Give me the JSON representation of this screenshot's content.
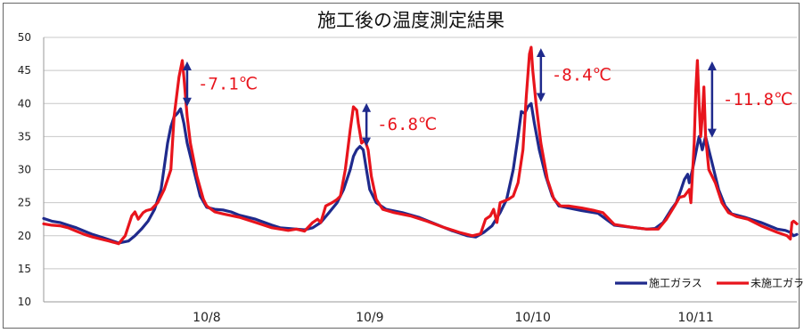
{
  "chart_data": {
    "type": "line",
    "title": "施工後の温度測定結果",
    "xlabel": "",
    "ylabel": "",
    "ylim": [
      10,
      50
    ],
    "yticks": [
      10,
      15,
      20,
      25,
      30,
      35,
      40,
      45,
      50
    ],
    "x_range": [
      0,
      4.62
    ],
    "x_ticks": [
      {
        "label": "10/8",
        "x": 1.0
      },
      {
        "label": "10/9",
        "x": 2.0
      },
      {
        "label": "10/10",
        "x": 3.0
      },
      {
        "label": "10/11",
        "x": 4.0
      }
    ],
    "grid": true,
    "legend_position": "bottom-right",
    "series": [
      {
        "name": "施工ガラス",
        "color": "#1f2a8c",
        "points": [
          [
            0.0,
            22.6
          ],
          [
            0.05,
            22.2
          ],
          [
            0.1,
            22.0
          ],
          [
            0.15,
            21.6
          ],
          [
            0.2,
            21.2
          ],
          [
            0.25,
            20.7
          ],
          [
            0.3,
            20.2
          ],
          [
            0.35,
            19.8
          ],
          [
            0.4,
            19.4
          ],
          [
            0.46,
            18.9
          ],
          [
            0.52,
            19.2
          ],
          [
            0.56,
            20.0
          ],
          [
            0.6,
            21.0
          ],
          [
            0.64,
            22.2
          ],
          [
            0.68,
            24.0
          ],
          [
            0.72,
            27.0
          ],
          [
            0.76,
            34.0
          ],
          [
            0.78,
            36.5
          ],
          [
            0.8,
            38.0
          ],
          [
            0.82,
            38.5
          ],
          [
            0.84,
            39.2
          ],
          [
            0.86,
            37.0
          ],
          [
            0.88,
            34.0
          ],
          [
            0.92,
            30.0
          ],
          [
            0.96,
            26.0
          ],
          [
            1.0,
            24.3
          ],
          [
            1.05,
            24.0
          ],
          [
            1.1,
            23.9
          ],
          [
            1.15,
            23.6
          ],
          [
            1.2,
            23.1
          ],
          [
            1.3,
            22.5
          ],
          [
            1.4,
            21.6
          ],
          [
            1.45,
            21.2
          ],
          [
            1.5,
            21.1
          ],
          [
            1.6,
            20.9
          ],
          [
            1.65,
            21.2
          ],
          [
            1.7,
            22.0
          ],
          [
            1.75,
            23.5
          ],
          [
            1.8,
            25.0
          ],
          [
            1.84,
            27.0
          ],
          [
            1.88,
            30.0
          ],
          [
            1.9,
            32.0
          ],
          [
            1.92,
            33.0
          ],
          [
            1.94,
            33.5
          ],
          [
            1.96,
            33.0
          ],
          [
            1.98,
            30.0
          ],
          [
            2.0,
            27.0
          ],
          [
            2.04,
            25.0
          ],
          [
            2.1,
            24.0
          ],
          [
            2.2,
            23.5
          ],
          [
            2.3,
            22.8
          ],
          [
            2.4,
            21.8
          ],
          [
            2.5,
            20.8
          ],
          [
            2.6,
            20.0
          ],
          [
            2.65,
            19.8
          ],
          [
            2.7,
            20.5
          ],
          [
            2.75,
            21.5
          ],
          [
            2.8,
            23.5
          ],
          [
            2.84,
            25.5
          ],
          [
            2.88,
            30.0
          ],
          [
            2.91,
            35.0
          ],
          [
            2.93,
            38.8
          ],
          [
            2.95,
            38.5
          ],
          [
            2.97,
            39.5
          ],
          [
            2.99,
            40.0
          ],
          [
            3.01,
            37.0
          ],
          [
            3.04,
            33.0
          ],
          [
            3.08,
            29.0
          ],
          [
            3.12,
            26.0
          ],
          [
            3.16,
            24.5
          ],
          [
            3.2,
            24.3
          ],
          [
            3.3,
            23.8
          ],
          [
            3.4,
            23.4
          ],
          [
            3.45,
            22.5
          ],
          [
            3.5,
            21.6
          ],
          [
            3.6,
            21.3
          ],
          [
            3.7,
            21.0
          ],
          [
            3.75,
            21.1
          ],
          [
            3.8,
            22.0
          ],
          [
            3.85,
            24.0
          ],
          [
            3.88,
            25.0
          ],
          [
            3.91,
            27.0
          ],
          [
            3.93,
            28.5
          ],
          [
            3.95,
            29.3
          ],
          [
            3.96,
            28.0
          ],
          [
            3.98,
            30.0
          ],
          [
            4.0,
            32.5
          ],
          [
            4.02,
            35.0
          ],
          [
            4.04,
            33.0
          ],
          [
            4.06,
            35.0
          ],
          [
            4.08,
            33.0
          ],
          [
            4.1,
            31.0
          ],
          [
            4.14,
            27.0
          ],
          [
            4.18,
            24.5
          ],
          [
            4.22,
            23.3
          ],
          [
            4.3,
            22.8
          ],
          [
            4.4,
            22.0
          ],
          [
            4.5,
            21.0
          ],
          [
            4.55,
            20.8
          ],
          [
            4.58,
            20.5
          ],
          [
            4.6,
            20.0
          ],
          [
            4.62,
            20.2
          ]
        ]
      },
      {
        "name": "未施工ガラス",
        "color": "#e8141c",
        "points": [
          [
            0.0,
            21.8
          ],
          [
            0.05,
            21.6
          ],
          [
            0.1,
            21.5
          ],
          [
            0.15,
            21.2
          ],
          [
            0.2,
            20.7
          ],
          [
            0.25,
            20.2
          ],
          [
            0.3,
            19.8
          ],
          [
            0.35,
            19.5
          ],
          [
            0.4,
            19.2
          ],
          [
            0.46,
            18.8
          ],
          [
            0.5,
            20.0
          ],
          [
            0.54,
            23.0
          ],
          [
            0.56,
            23.6
          ],
          [
            0.58,
            22.5
          ],
          [
            0.61,
            23.5
          ],
          [
            0.63,
            23.8
          ],
          [
            0.66,
            24.0
          ],
          [
            0.7,
            25.0
          ],
          [
            0.74,
            27.0
          ],
          [
            0.78,
            30.0
          ],
          [
            0.8,
            38.0
          ],
          [
            0.83,
            44.0
          ],
          [
            0.85,
            46.5
          ],
          [
            0.86,
            44.0
          ],
          [
            0.88,
            38.0
          ],
          [
            0.9,
            34.0
          ],
          [
            0.94,
            29.0
          ],
          [
            0.98,
            25.5
          ],
          [
            1.0,
            24.5
          ],
          [
            1.05,
            23.6
          ],
          [
            1.1,
            23.3
          ],
          [
            1.2,
            22.8
          ],
          [
            1.3,
            22.0
          ],
          [
            1.4,
            21.2
          ],
          [
            1.5,
            20.8
          ],
          [
            1.55,
            21.0
          ],
          [
            1.6,
            20.7
          ],
          [
            1.65,
            22.0
          ],
          [
            1.68,
            22.5
          ],
          [
            1.7,
            22.0
          ],
          [
            1.73,
            24.5
          ],
          [
            1.77,
            25.0
          ],
          [
            1.8,
            25.5
          ],
          [
            1.82,
            26.0
          ],
          [
            1.85,
            30.0
          ],
          [
            1.88,
            36.0
          ],
          [
            1.9,
            39.5
          ],
          [
            1.92,
            39.0
          ],
          [
            1.93,
            37.0
          ],
          [
            1.95,
            34.0
          ],
          [
            1.97,
            34.5
          ],
          [
            1.99,
            33.0
          ],
          [
            2.01,
            29.0
          ],
          [
            2.04,
            25.5
          ],
          [
            2.08,
            24.0
          ],
          [
            2.15,
            23.5
          ],
          [
            2.25,
            23.0
          ],
          [
            2.35,
            22.2
          ],
          [
            2.45,
            21.3
          ],
          [
            2.55,
            20.5
          ],
          [
            2.63,
            20.0
          ],
          [
            2.68,
            20.3
          ],
          [
            2.71,
            22.5
          ],
          [
            2.74,
            23.0
          ],
          [
            2.76,
            24.0
          ],
          [
            2.78,
            22.0
          ],
          [
            2.8,
            25.0
          ],
          [
            2.85,
            25.5
          ],
          [
            2.88,
            26.0
          ],
          [
            2.91,
            28.0
          ],
          [
            2.94,
            33.0
          ],
          [
            2.96,
            41.0
          ],
          [
            2.98,
            47.5
          ],
          [
            2.99,
            48.5
          ],
          [
            3.0,
            45.0
          ],
          [
            3.02,
            40.0
          ],
          [
            3.05,
            34.0
          ],
          [
            3.09,
            28.5
          ],
          [
            3.13,
            25.5
          ],
          [
            3.17,
            24.5
          ],
          [
            3.22,
            24.5
          ],
          [
            3.3,
            24.2
          ],
          [
            3.38,
            23.8
          ],
          [
            3.43,
            23.5
          ],
          [
            3.5,
            21.7
          ],
          [
            3.6,
            21.3
          ],
          [
            3.7,
            21.0
          ],
          [
            3.77,
            21.0
          ],
          [
            3.82,
            22.5
          ],
          [
            3.87,
            24.5
          ],
          [
            3.9,
            25.8
          ],
          [
            3.93,
            26.0
          ],
          [
            3.96,
            27.0
          ],
          [
            3.97,
            25.0
          ],
          [
            3.99,
            34.0
          ],
          [
            4.0,
            42.0
          ],
          [
            4.01,
            46.5
          ],
          [
            4.02,
            40.0
          ],
          [
            4.03,
            35.0
          ],
          [
            4.04,
            38.0
          ],
          [
            4.05,
            42.5
          ],
          [
            4.06,
            35.0
          ],
          [
            4.08,
            30.0
          ],
          [
            4.12,
            28.0
          ],
          [
            4.16,
            25.0
          ],
          [
            4.2,
            23.5
          ],
          [
            4.25,
            22.9
          ],
          [
            4.32,
            22.5
          ],
          [
            4.4,
            21.5
          ],
          [
            4.5,
            20.5
          ],
          [
            4.56,
            20.0
          ],
          [
            4.58,
            19.5
          ],
          [
            4.59,
            22.0
          ],
          [
            4.6,
            22.2
          ],
          [
            4.62,
            21.8
          ]
        ]
      }
    ],
    "annotations": [
      {
        "text": "-7.1℃",
        "x": 0.88,
        "y_top": 46.5,
        "y_bottom": 39.4
      },
      {
        "text": "-6.8℃",
        "x": 1.98,
        "y_top": 40.2,
        "y_bottom": 33.4
      },
      {
        "text": "-8.4℃",
        "x": 3.05,
        "y_top": 48.5,
        "y_bottom": 40.1
      },
      {
        "text": "-11.8℃",
        "x": 4.1,
        "y_top": 46.5,
        "y_bottom": 34.7
      }
    ]
  },
  "legend": {
    "items": [
      {
        "label": "施工ガラス",
        "color": "#1f2a8c"
      },
      {
        "label": "未施工ガラス",
        "color": "#e8141c"
      }
    ]
  },
  "colors": {
    "arrow": "#1f2a8c",
    "annotation_text": "#e8141c",
    "grid": "#c8c8c8",
    "frame": "#666666"
  }
}
